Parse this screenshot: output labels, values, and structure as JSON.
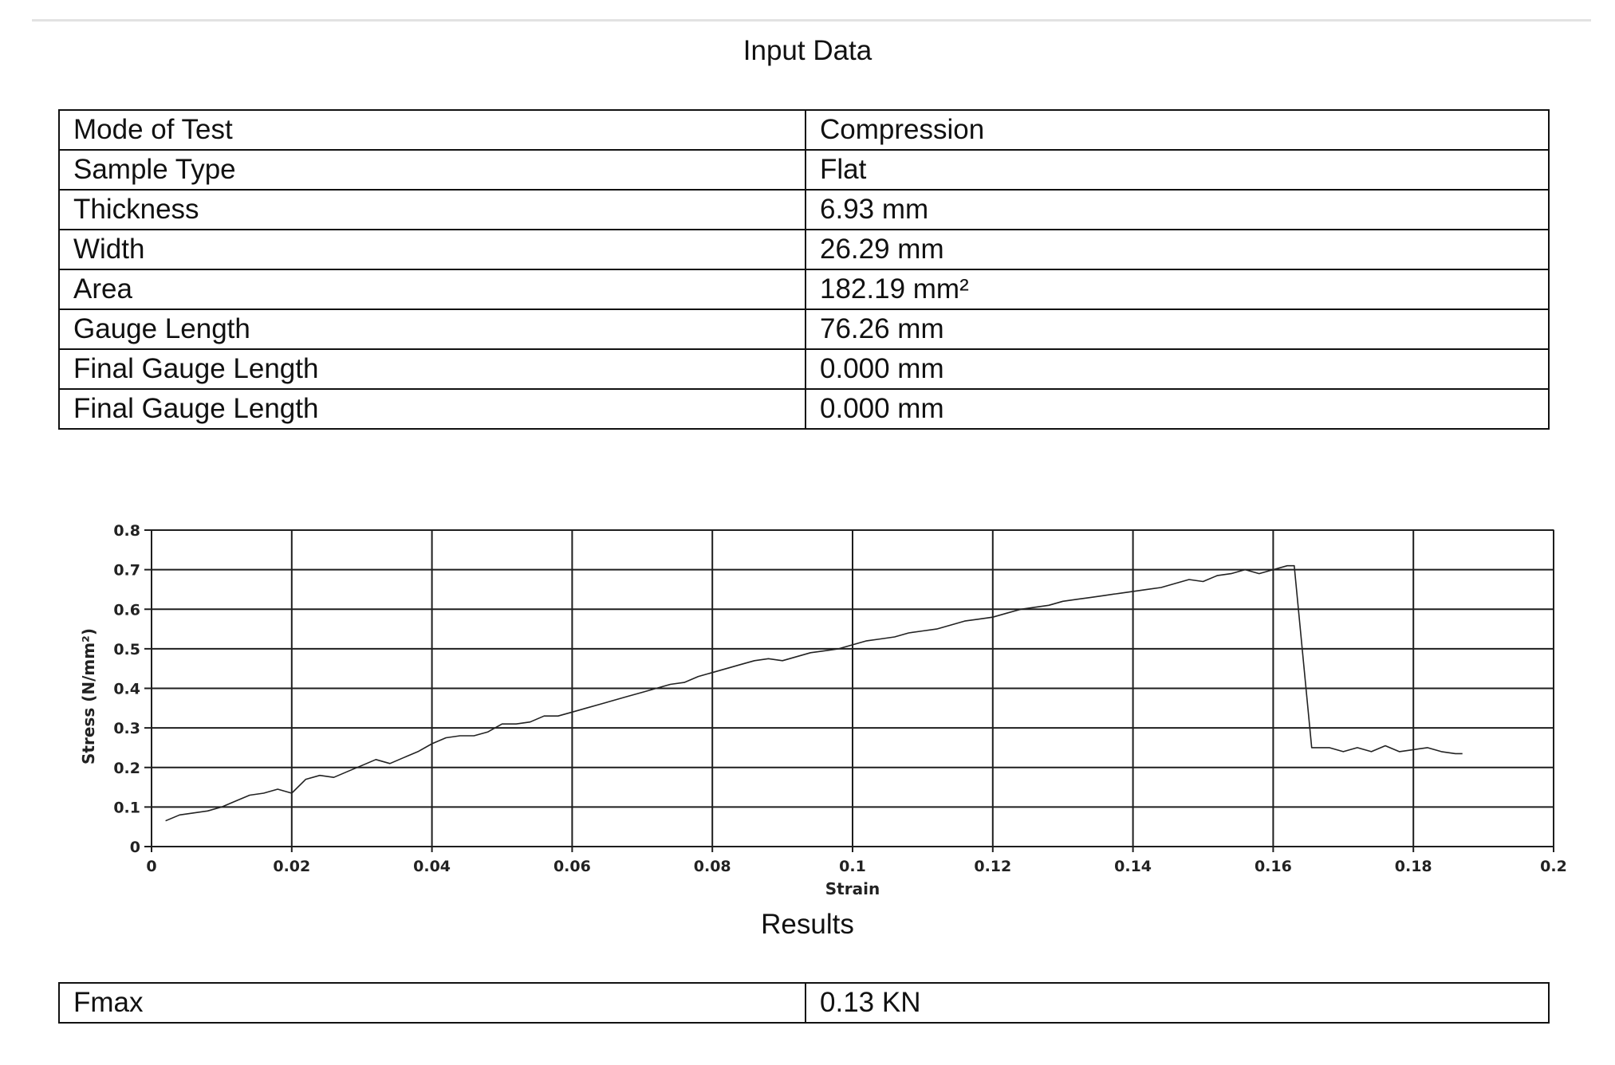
{
  "input_section": {
    "title": "Input Data",
    "rows": [
      {
        "label": "Mode of Test",
        "value": "Compression"
      },
      {
        "label": "Sample Type",
        "value": "Flat"
      },
      {
        "label": "Thickness",
        "value": "6.93 mm"
      },
      {
        "label": "Width",
        "value": "26.29 mm"
      },
      {
        "label": "Area",
        "value": "182.19 mm²"
      },
      {
        "label": "Gauge Length",
        "value": "76.26 mm"
      },
      {
        "label": "Final Gauge Length",
        "value": "0.000 mm"
      },
      {
        "label": "Final Gauge Length",
        "value": "0.000 mm"
      }
    ]
  },
  "results_section": {
    "title": "Results",
    "rows": [
      {
        "label": "Fmax",
        "value": "0.13 KN"
      }
    ]
  },
  "chart_data": {
    "type": "line",
    "xlabel": "Strain",
    "ylabel": "Stress (N/mm²)",
    "xlim": [
      0,
      0.2
    ],
    "ylim": [
      0,
      0.8
    ],
    "x_ticks": [
      "0",
      "0.02",
      "0.04",
      "0.06",
      "0.08",
      "0.1",
      "0.12",
      "0.14",
      "0.16",
      "0.18",
      "0.2"
    ],
    "y_ticks": [
      "0",
      "0.1",
      "0.2",
      "0.3",
      "0.4",
      "0.5",
      "0.6",
      "0.7",
      "0.8"
    ],
    "grid": true,
    "line_color": "#222222",
    "series": [
      {
        "x": [
          0.002,
          0.004,
          0.006,
          0.008,
          0.01,
          0.012,
          0.014,
          0.016,
          0.018,
          0.02,
          0.022,
          0.024,
          0.026,
          0.028,
          0.03,
          0.032,
          0.034,
          0.036,
          0.038,
          0.04,
          0.042,
          0.044,
          0.046,
          0.048,
          0.05,
          0.052,
          0.054,
          0.056,
          0.058,
          0.06,
          0.062,
          0.064,
          0.066,
          0.068,
          0.07,
          0.072,
          0.074,
          0.076,
          0.078,
          0.08,
          0.082,
          0.084,
          0.086,
          0.088,
          0.09,
          0.092,
          0.094,
          0.096,
          0.098,
          0.1,
          0.102,
          0.104,
          0.106,
          0.108,
          0.11,
          0.112,
          0.114,
          0.116,
          0.118,
          0.12,
          0.122,
          0.124,
          0.126,
          0.128,
          0.13,
          0.132,
          0.134,
          0.136,
          0.138,
          0.14,
          0.142,
          0.144,
          0.146,
          0.148,
          0.15,
          0.152,
          0.154,
          0.156,
          0.158,
          0.16,
          0.162,
          0.163,
          0.1655,
          0.168,
          0.17,
          0.172,
          0.174,
          0.176,
          0.178,
          0.18,
          0.182,
          0.184,
          0.186,
          0.187
        ],
        "y": [
          0.065,
          0.08,
          0.085,
          0.09,
          0.1,
          0.115,
          0.13,
          0.135,
          0.145,
          0.135,
          0.17,
          0.18,
          0.175,
          0.19,
          0.205,
          0.22,
          0.21,
          0.225,
          0.24,
          0.26,
          0.275,
          0.28,
          0.28,
          0.29,
          0.31,
          0.31,
          0.315,
          0.33,
          0.33,
          0.34,
          0.35,
          0.36,
          0.37,
          0.38,
          0.39,
          0.4,
          0.41,
          0.415,
          0.43,
          0.44,
          0.45,
          0.46,
          0.47,
          0.475,
          0.47,
          0.48,
          0.49,
          0.495,
          0.5,
          0.51,
          0.52,
          0.525,
          0.53,
          0.54,
          0.545,
          0.55,
          0.56,
          0.57,
          0.575,
          0.58,
          0.59,
          0.6,
          0.605,
          0.61,
          0.62,
          0.625,
          0.63,
          0.635,
          0.64,
          0.645,
          0.65,
          0.655,
          0.665,
          0.675,
          0.67,
          0.685,
          0.69,
          0.7,
          0.69,
          0.7,
          0.71,
          0.71,
          0.25,
          0.25,
          0.24,
          0.25,
          0.24,
          0.255,
          0.24,
          0.245,
          0.25,
          0.24,
          0.235,
          0.235
        ]
      }
    ]
  }
}
